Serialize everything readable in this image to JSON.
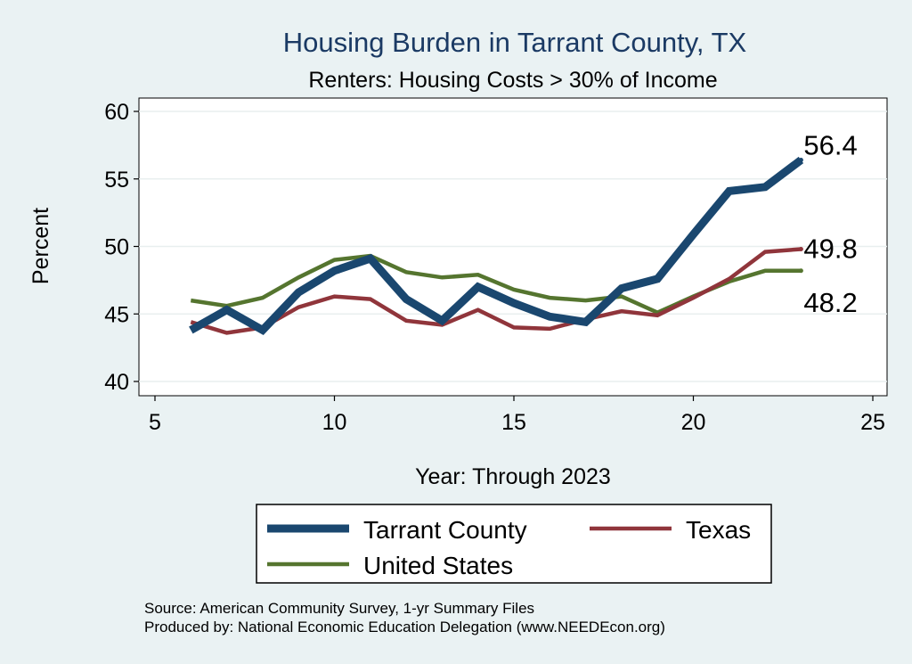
{
  "chart_data": {
    "type": "line",
    "title": "Housing Burden in Tarrant County, TX",
    "subtitle": "Renters: Housing Costs > 30% of Income",
    "xlabel": "Year: Through 2023",
    "ylabel": "Percent",
    "xlim": [
      5,
      25
    ],
    "ylim": [
      40,
      60
    ],
    "xticks": [
      5,
      10,
      15,
      20,
      25
    ],
    "yticks": [
      40,
      45,
      50,
      55,
      60
    ],
    "grid": true,
    "legend_position": "bottom",
    "x": [
      6,
      7,
      8,
      9,
      10,
      11,
      12,
      13,
      14,
      15,
      16,
      17,
      18,
      19,
      20,
      21,
      22,
      23
    ],
    "series": [
      {
        "name": "Tarrant County",
        "color": "#1a476f",
        "values": [
          43.8,
          45.3,
          43.8,
          46.6,
          48.2,
          49.1,
          46.1,
          44.5,
          47.0,
          45.8,
          44.8,
          44.4,
          46.9,
          47.6,
          50.9,
          54.1,
          54.4,
          56.4
        ],
        "end_label": "56.4"
      },
      {
        "name": "Texas",
        "color": "#90353b",
        "values": [
          44.4,
          43.6,
          44.0,
          45.5,
          46.3,
          46.1,
          44.5,
          44.2,
          45.3,
          44.0,
          43.9,
          44.6,
          45.2,
          44.9,
          46.2,
          47.6,
          49.6,
          49.8
        ],
        "end_label": "49.8"
      },
      {
        "name": "United States",
        "color": "#55752f",
        "values": [
          46.0,
          45.6,
          46.2,
          47.7,
          49.0,
          49.3,
          48.1,
          47.7,
          47.9,
          46.8,
          46.2,
          46.0,
          46.3,
          45.1,
          46.3,
          47.4,
          48.2,
          48.2
        ],
        "end_label": "48.2"
      }
    ],
    "notes": [
      "Source: American Community Survey, 1-yr Summary Files",
      "Produced by: National Economic Education Delegation (www.NEEDEcon.org)"
    ]
  }
}
